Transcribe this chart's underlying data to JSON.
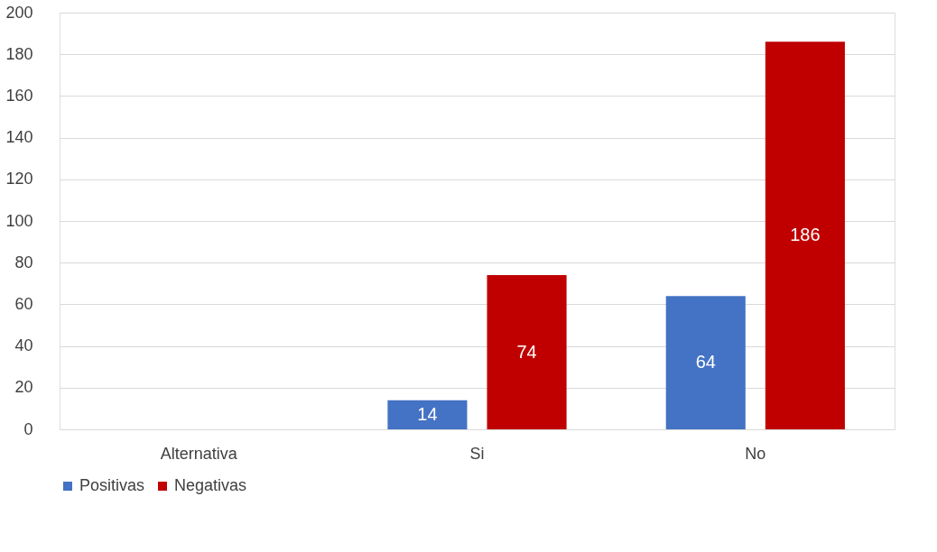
{
  "chart_data": {
    "type": "bar",
    "categories": [
      "Alternativa",
      "Si",
      "No"
    ],
    "series": [
      {
        "name": "Positivas",
        "color": "#4472c4",
        "values": [
          0,
          14,
          64
        ],
        "value_labels": [
          null,
          "14",
          "64"
        ]
      },
      {
        "name": "Negativas",
        "color": "#c00000",
        "values": [
          null,
          74,
          186
        ],
        "value_labels": [
          null,
          "74",
          "186"
        ]
      }
    ],
    "ylim": [
      0,
      200
    ],
    "yticks": [
      0,
      20,
      40,
      60,
      80,
      100,
      120,
      140,
      160,
      180,
      200
    ],
    "grid": "y",
    "legend": "bottom"
  }
}
